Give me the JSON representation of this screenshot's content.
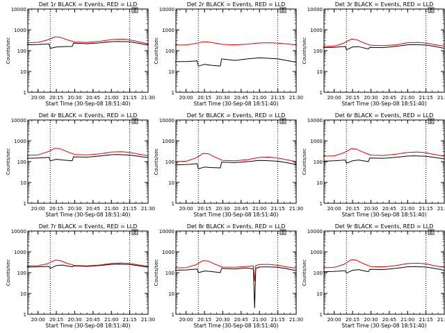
{
  "colors": {
    "events": "#000000",
    "lld": "#e00000",
    "axes": "#000000",
    "background": "#ffffff"
  },
  "chart_data": [
    {
      "type": "line",
      "title": "Det 1r BLACK = Events, RED = LLD",
      "xlabel": "Start Time (30-Sep-08 18:51:40)",
      "ylabel": "Counts/sec",
      "yscale": "log",
      "ylim": [
        1,
        10000
      ],
      "xlim": [
        "19:51:40",
        "21:30:00"
      ],
      "y_tick_labels": [
        "1",
        "10",
        "100",
        "1000",
        "10000"
      ],
      "x_tick_labels": [
        "20:00",
        "20:15",
        "20:30",
        "20:45",
        "21:00",
        "21:15",
        "21:30"
      ],
      "vertical_dotted_lines": [
        "20:10",
        "21:15"
      ],
      "marker_label": "E",
      "grid": false,
      "series": [
        {
          "name": "Events",
          "x": [
            "19:51",
            "20:00",
            "20:09",
            "20:10",
            "20:15",
            "20:20",
            "20:28",
            "20:29",
            "20:40",
            "20:50",
            "21:00",
            "21:05",
            "21:15",
            "21:22",
            "21:30"
          ],
          "y": [
            190,
            195,
            210,
            130,
            150,
            155,
            160,
            230,
            215,
            235,
            270,
            275,
            265,
            225,
            185
          ]
        },
        {
          "name": "LLD",
          "x": [
            "19:51",
            "20:00",
            "20:08",
            "20:14",
            "20:18",
            "20:24",
            "20:30",
            "20:40",
            "20:50",
            "21:00",
            "21:08",
            "21:15",
            "21:22",
            "21:30"
          ],
          "y": [
            240,
            250,
            330,
            460,
            440,
            330,
            260,
            250,
            280,
            340,
            360,
            330,
            270,
            210
          ]
        }
      ]
    },
    {
      "type": "line",
      "title": "Det 2r BLACK = Events, RED = LLD",
      "xlabel": "Start Time (30-Sep-08 18:51:40)",
      "ylabel": "Counts/sec",
      "yscale": "log",
      "ylim": [
        1,
        10000
      ],
      "xlim": [
        "19:51:40",
        "21:30:00"
      ],
      "y_tick_labels": [
        "1",
        "10",
        "100",
        "1000",
        "10000"
      ],
      "x_tick_labels": [
        "20:00",
        "20:15",
        "20:30",
        "20:45",
        "21:00",
        "21:15",
        "21:30"
      ],
      "vertical_dotted_lines": [
        "20:10",
        "21:15"
      ],
      "marker_label": "E",
      "grid": false,
      "series": [
        {
          "name": "Events",
          "x": [
            "19:51",
            "20:00",
            "20:09",
            "20:10",
            "20:15",
            "20:20",
            "20:28",
            "20:29",
            "20:40",
            "20:50",
            "21:00",
            "21:05",
            "21:15",
            "21:22",
            "21:30"
          ],
          "y": [
            30,
            30,
            32,
            18,
            22,
            20,
            18,
            40,
            34,
            40,
            45,
            44,
            40,
            34,
            28
          ]
        },
        {
          "name": "LLD",
          "x": [
            "19:51",
            "20:00",
            "20:08",
            "20:14",
            "20:18",
            "20:24",
            "20:30",
            "20:40",
            "20:50",
            "21:00",
            "21:08",
            "21:15",
            "21:22",
            "21:30"
          ],
          "y": [
            185,
            190,
            220,
            270,
            260,
            230,
            200,
            190,
            205,
            235,
            240,
            230,
            210,
            190
          ]
        }
      ]
    },
    {
      "type": "line",
      "title": "Det 3r BLACK = Events, RED = LLD",
      "xlabel": "Start Time (30-Sep-08 18:51:40)",
      "ylabel": "Counts/sec",
      "yscale": "log",
      "ylim": [
        1,
        10000
      ],
      "xlim": [
        "19:51:40",
        "21:30:00"
      ],
      "y_tick_labels": [
        "1",
        "10",
        "100",
        "1000",
        "10000"
      ],
      "x_tick_labels": [
        "20:00",
        "20:15",
        "20:30",
        "20:45",
        "21:00",
        "21:15",
        "21:30"
      ],
      "vertical_dotted_lines": [
        "20:10",
        "21:15"
      ],
      "marker_label": "E",
      "grid": false,
      "series": [
        {
          "name": "Events",
          "x": [
            "19:51",
            "20:00",
            "20:09",
            "20:10",
            "20:15",
            "20:20",
            "20:28",
            "20:29",
            "20:40",
            "20:50",
            "21:00",
            "21:05",
            "21:15",
            "21:22",
            "21:30"
          ],
          "y": [
            140,
            145,
            160,
            110,
            150,
            155,
            120,
            145,
            140,
            160,
            190,
            195,
            185,
            160,
            130
          ]
        },
        {
          "name": "LLD",
          "x": [
            "19:51",
            "20:00",
            "20:08",
            "20:14",
            "20:18",
            "20:24",
            "20:30",
            "20:40",
            "20:50",
            "21:00",
            "21:08",
            "21:15",
            "21:22",
            "21:30"
          ],
          "y": [
            160,
            165,
            230,
            360,
            340,
            240,
            180,
            175,
            190,
            240,
            250,
            230,
            195,
            165
          ]
        }
      ]
    },
    {
      "type": "line",
      "title": "Det 4r BLACK = Events, RED = LLD",
      "xlabel": "Start Time (30-Sep-08 18:51:40)",
      "ylabel": "Counts/sec",
      "yscale": "log",
      "ylim": [
        1,
        10000
      ],
      "xlim": [
        "19:51:40",
        "21:30:00"
      ],
      "y_tick_labels": [
        "1",
        "10",
        "100",
        "1000",
        "10000"
      ],
      "x_tick_labels": [
        "20:00",
        "20:15",
        "20:30",
        "20:45",
        "21:00",
        "21:15",
        "21:30"
      ],
      "vertical_dotted_lines": [
        "20:10",
        "21:15"
      ],
      "marker_label": "E",
      "grid": false,
      "series": [
        {
          "name": "Events",
          "x": [
            "19:51",
            "20:00",
            "20:09",
            "20:10",
            "20:15",
            "20:20",
            "20:28",
            "20:29",
            "20:40",
            "20:50",
            "21:00",
            "21:05",
            "21:15",
            "21:22",
            "21:30"
          ],
          "y": [
            145,
            150,
            160,
            110,
            130,
            120,
            110,
            170,
            165,
            185,
            215,
            220,
            205,
            180,
            155
          ]
        },
        {
          "name": "LLD",
          "x": [
            "19:51",
            "20:00",
            "20:08",
            "20:14",
            "20:18",
            "20:24",
            "20:30",
            "20:40",
            "20:50",
            "21:00",
            "21:08",
            "21:15",
            "21:22",
            "21:30"
          ],
          "y": [
            200,
            210,
            300,
            440,
            420,
            300,
            220,
            210,
            235,
            290,
            300,
            280,
            230,
            195
          ]
        }
      ]
    },
    {
      "type": "line",
      "title": "Det 5r BLACK = Events, RED = LLD",
      "xlabel": "Start Time (30-Sep-08 18:51:40)",
      "ylabel": "Counts/sec",
      "yscale": "log",
      "ylim": [
        1,
        10000
      ],
      "xlim": [
        "19:51:40",
        "21:30:00"
      ],
      "y_tick_labels": [
        "1",
        "10",
        "100",
        "1000",
        "10000"
      ],
      "x_tick_labels": [
        "20:00",
        "20:15",
        "20:30",
        "20:45",
        "21:00",
        "21:15",
        "21:30"
      ],
      "vertical_dotted_lines": [
        "20:10",
        "21:15"
      ],
      "marker_label": "E",
      "grid": false,
      "series": [
        {
          "name": "Events",
          "x": [
            "19:51",
            "20:00",
            "20:09",
            "20:10",
            "20:15",
            "20:20",
            "20:28",
            "20:29",
            "20:40",
            "20:50",
            "21:00",
            "21:05",
            "21:15",
            "21:22",
            "21:30"
          ],
          "y": [
            70,
            72,
            80,
            45,
            55,
            52,
            50,
            95,
            90,
            100,
            115,
            112,
            105,
            90,
            72
          ]
        },
        {
          "name": "LLD",
          "x": [
            "19:51",
            "20:00",
            "20:08",
            "20:14",
            "20:18",
            "20:24",
            "20:30",
            "20:40",
            "20:50",
            "21:00",
            "21:08",
            "21:15",
            "21:22",
            "21:30"
          ],
          "y": [
            100,
            105,
            150,
            250,
            240,
            160,
            115,
            110,
            125,
            160,
            165,
            150,
            125,
            100
          ]
        }
      ]
    },
    {
      "type": "line",
      "title": "Det 6r BLACK = Events, RED = LLD",
      "xlabel": "Start Time (30-Sep-08 18:51:40)",
      "ylabel": "Counts/sec",
      "yscale": "log",
      "ylim": [
        1,
        10000
      ],
      "xlim": [
        "19:51:40",
        "21:30:00"
      ],
      "y_tick_labels": [
        "1",
        "10",
        "100",
        "1000",
        "10000"
      ],
      "x_tick_labels": [
        "20:00",
        "20:15",
        "20:30",
        "20:45",
        "21:00",
        "21:15",
        "21:30"
      ],
      "vertical_dotted_lines": [
        "20:10",
        "21:15"
      ],
      "marker_label": "E",
      "grid": false,
      "series": [
        {
          "name": "Events",
          "x": [
            "19:51",
            "20:00",
            "20:09",
            "20:10",
            "20:15",
            "20:20",
            "20:28",
            "20:29",
            "20:40",
            "20:50",
            "21:00",
            "21:05",
            "21:15",
            "21:22",
            "21:30"
          ],
          "y": [
            105,
            110,
            120,
            85,
            110,
            120,
            100,
            150,
            145,
            160,
            185,
            190,
            180,
            160,
            135
          ]
        },
        {
          "name": "LLD",
          "x": [
            "19:51",
            "20:00",
            "20:08",
            "20:14",
            "20:18",
            "20:24",
            "20:30",
            "20:40",
            "20:50",
            "21:00",
            "21:08",
            "21:15",
            "21:22",
            "21:30"
          ],
          "y": [
            180,
            190,
            270,
            420,
            400,
            280,
            205,
            200,
            225,
            280,
            290,
            270,
            220,
            185
          ]
        }
      ]
    },
    {
      "type": "line",
      "title": "Det 7r BLACK = Events, RED = LLD",
      "xlabel": "Start Time (30-Sep-08 18:51:40)",
      "ylabel": "Counts/sec",
      "yscale": "log",
      "ylim": [
        1,
        10000
      ],
      "xlim": [
        "19:51:40",
        "21:30:00"
      ],
      "y_tick_labels": [
        "1",
        "10",
        "100",
        "1000",
        "10000"
      ],
      "x_tick_labels": [
        "20:00",
        "20:15",
        "20:30",
        "20:45",
        "21:00",
        "21:15",
        "21:30"
      ],
      "vertical_dotted_lines": [
        "20:10",
        "21:15"
      ],
      "marker_label": "E",
      "grid": false,
      "series": [
        {
          "name": "Events",
          "x": [
            "19:51",
            "20:00",
            "20:09",
            "20:10",
            "20:15",
            "20:20",
            "20:28",
            "20:29",
            "20:40",
            "20:50",
            "21:00",
            "21:05",
            "21:15",
            "21:22",
            "21:30"
          ],
          "y": [
            185,
            190,
            200,
            160,
            220,
            230,
            190,
            210,
            200,
            220,
            250,
            255,
            245,
            215,
            180
          ]
        },
        {
          "name": "LLD",
          "x": [
            "19:51",
            "20:00",
            "20:08",
            "20:14",
            "20:18",
            "20:24",
            "20:30",
            "20:40",
            "20:50",
            "21:00",
            "21:08",
            "21:15",
            "21:22",
            "21:30"
          ],
          "y": [
            210,
            215,
            270,
            400,
            380,
            280,
            220,
            210,
            230,
            280,
            290,
            275,
            235,
            205
          ]
        }
      ]
    },
    {
      "type": "line",
      "title": "Det 8r BLACK = Events, RED = LLD",
      "xlabel": "Start Time (30-Sep-08 18:51:40)",
      "ylabel": "Counts/sec",
      "yscale": "log",
      "ylim": [
        1,
        10000
      ],
      "xlim": [
        "19:51:40",
        "21:30:00"
      ],
      "y_tick_labels": [
        "1",
        "10",
        "100",
        "1000",
        "10000"
      ],
      "x_tick_labels": [
        "20:00",
        "20:15",
        "20:30",
        "20:45",
        "21:00",
        "21:15",
        "21:30"
      ],
      "vertical_dotted_lines": [
        "20:10",
        "21:15"
      ],
      "marker_label": "E",
      "grid": false,
      "series": [
        {
          "name": "Events",
          "x": [
            "19:51",
            "20:00",
            "20:09",
            "20:10",
            "20:15",
            "20:20",
            "20:28",
            "20:29",
            "20:40",
            "20:50",
            "20:55",
            "20:56",
            "20:57",
            "21:00",
            "21:05",
            "21:15",
            "21:22",
            "21:30"
          ],
          "y": [
            130,
            135,
            150,
            100,
            120,
            115,
            100,
            160,
            150,
            170,
            150,
            2,
            160,
            185,
            190,
            180,
            155,
            125
          ]
        },
        {
          "name": "LLD",
          "x": [
            "19:51",
            "20:00",
            "20:08",
            "20:14",
            "20:18",
            "20:24",
            "20:30",
            "20:40",
            "20:50",
            "20:55",
            "20:56",
            "20:57",
            "21:00",
            "21:08",
            "21:15",
            "21:22",
            "21:30"
          ],
          "y": [
            170,
            175,
            240,
            380,
            360,
            250,
            185,
            180,
            200,
            210,
            40,
            220,
            250,
            245,
            225,
            190,
            165
          ]
        }
      ]
    },
    {
      "type": "line",
      "title": "Det 9r BLACK = Events, RED = LLD",
      "xlabel": "Start Time (30-Sep-08 18:51:40)",
      "ylabel": "Counts/sec",
      "yscale": "log",
      "ylim": [
        1,
        10000
      ],
      "xlim": [
        "19:51:40",
        "21:30:00"
      ],
      "y_tick_labels": [
        "1",
        "10",
        "100",
        "1000",
        "10000"
      ],
      "x_tick_labels": [
        "20:00",
        "20:15",
        "20:30",
        "20:45",
        "21:00",
        "21:15",
        "21:30"
      ],
      "vertical_dotted_lines": [
        "20:10",
        "21:15"
      ],
      "marker_label": "E",
      "grid": false,
      "series": [
        {
          "name": "Events",
          "x": [
            "19:51",
            "20:00",
            "20:09",
            "20:10",
            "20:15",
            "20:20",
            "20:28",
            "20:29",
            "20:40",
            "20:50",
            "21:00",
            "21:05",
            "21:15",
            "21:22",
            "21:30"
          ],
          "y": [
            110,
            115,
            125,
            95,
            130,
            140,
            110,
            145,
            140,
            160,
            190,
            195,
            185,
            160,
            130
          ]
        },
        {
          "name": "LLD",
          "x": [
            "19:51",
            "20:00",
            "20:08",
            "20:14",
            "20:18",
            "20:24",
            "20:30",
            "20:40",
            "20:50",
            "21:00",
            "21:08",
            "21:15",
            "21:22",
            "21:30"
          ],
          "y": [
            170,
            180,
            250,
            420,
            400,
            270,
            195,
            190,
            215,
            275,
            285,
            265,
            215,
            180
          ]
        }
      ]
    }
  ]
}
